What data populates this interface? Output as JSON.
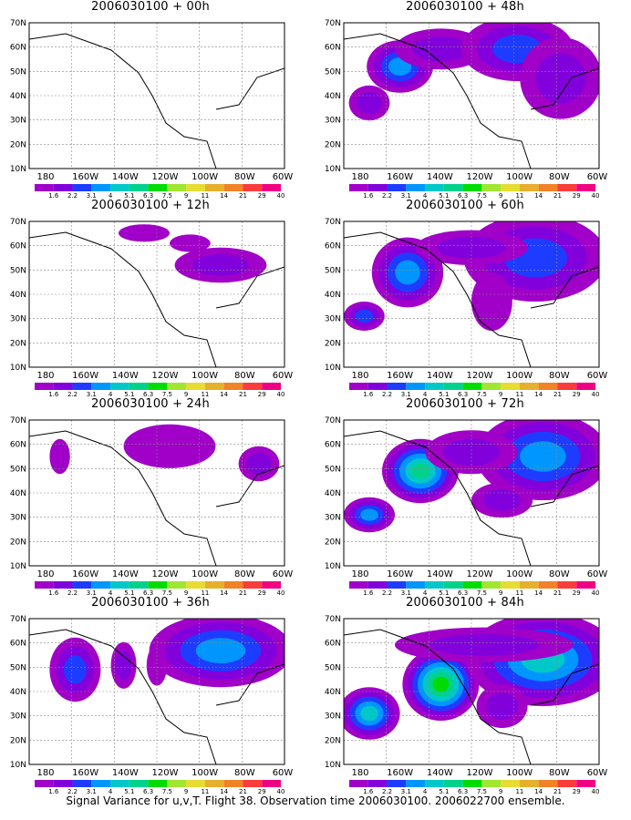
{
  "panels": [
    {
      "title": "2006030100 + 00h"
    },
    {
      "title": "2006030100 + 48h"
    },
    {
      "title": "2006030100 + 12h"
    },
    {
      "title": "2006030100 + 60h"
    },
    {
      "title": "2006030100 + 24h"
    },
    {
      "title": "2006030100 + 72h"
    },
    {
      "title": "2006030100 + 36h"
    },
    {
      "title": "2006030100 + 84h"
    }
  ],
  "lat_labels": [
    "10N",
    "20N",
    "30N",
    "40N",
    "50N",
    "60N",
    "70N"
  ],
  "lon_labels": [
    "180",
    "160W",
    "140W",
    "120W",
    "100W",
    "80W",
    "60W"
  ],
  "colorbar": {
    "labels": [
      "1.6",
      "2.2",
      "3.1",
      "4",
      "5.1",
      "6.3",
      "7.5",
      "9",
      "11",
      "14",
      "21",
      "29",
      "40"
    ],
    "colors": [
      "#a000c8",
      "#8200dc",
      "#1e3cff",
      "#0096ff",
      "#00c8c8",
      "#00d28c",
      "#00dc00",
      "#a0e632",
      "#e6dc32",
      "#e6af2d",
      "#f08228",
      "#fa3c3c",
      "#f00082"
    ]
  },
  "caption": "Signal Variance for u,v,T. Flight 38. Observation time 2006030100. 2006022700 ensemble."
}
